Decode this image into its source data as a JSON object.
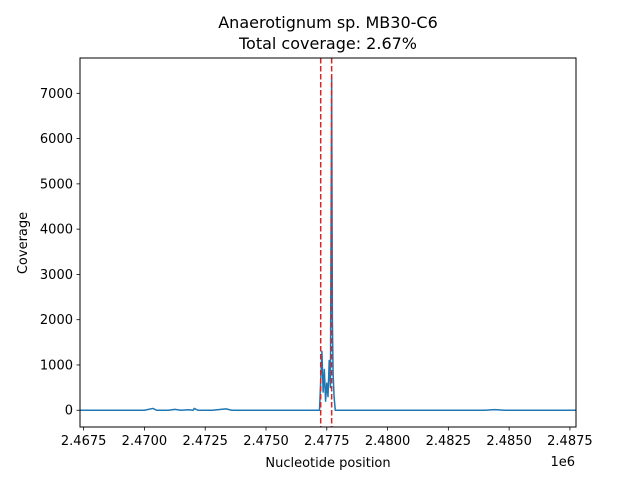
{
  "chart_data": {
    "type": "line",
    "title_line1": "Anaerotignum sp. MB30-C6",
    "title_line2": "Total coverage: 2.67%",
    "xlabel": "Nucleotide position",
    "ylabel": "Coverage",
    "x_offset_label": "1e6",
    "xlim": [
      2.46735,
      2.48775
    ],
    "ylim": [
      -370,
      7780
    ],
    "x_ticks": [
      {
        "value": 2.4675,
        "label": "2.4675"
      },
      {
        "value": 2.47,
        "label": "2.4700"
      },
      {
        "value": 2.4725,
        "label": "2.4725"
      },
      {
        "value": 2.475,
        "label": "2.4750"
      },
      {
        "value": 2.4775,
        "label": "2.4775"
      },
      {
        "value": 2.48,
        "label": "2.4800"
      },
      {
        "value": 2.4825,
        "label": "2.4825"
      },
      {
        "value": 2.485,
        "label": "2.4850"
      },
      {
        "value": 2.4875,
        "label": "2.4875"
      }
    ],
    "y_ticks": [
      {
        "value": 0,
        "label": "0"
      },
      {
        "value": 1000,
        "label": "1000"
      },
      {
        "value": 2000,
        "label": "2000"
      },
      {
        "value": 3000,
        "label": "3000"
      },
      {
        "value": 4000,
        "label": "4000"
      },
      {
        "value": 5000,
        "label": "5000"
      },
      {
        "value": 6000,
        "label": "6000"
      },
      {
        "value": 7000,
        "label": "7000"
      }
    ],
    "series": [
      {
        "color": "#1f77b4",
        "x": [
          2.46735,
          2.47,
          2.47035,
          2.4705,
          2.471,
          2.47125,
          2.4715,
          2.4718,
          2.472,
          2.47205,
          2.4722,
          2.4728,
          2.473,
          2.47335,
          2.4736,
          2.474,
          2.476,
          2.4772,
          2.4773,
          2.47735,
          2.4774,
          2.47745,
          2.4775,
          2.47755,
          2.4776,
          2.47765,
          2.4777,
          2.47773,
          2.47776,
          2.4778,
          2.47785,
          2.4779,
          2.4782,
          2.48,
          2.483,
          2.484,
          2.4844,
          2.4848,
          2.486,
          2.48775
        ],
        "y": [
          0,
          0,
          40,
          0,
          0,
          20,
          0,
          10,
          0,
          40,
          0,
          0,
          10,
          30,
          0,
          0,
          0,
          0,
          1300,
          400,
          900,
          200,
          600,
          300,
          1100,
          500,
          7350,
          2000,
          800,
          300,
          0,
          0,
          0,
          0,
          0,
          0,
          15,
          0,
          0,
          0
        ]
      }
    ],
    "vlines": [
      {
        "x": 2.47725,
        "color": "#d62728",
        "style": "dashed"
      },
      {
        "x": 2.4777,
        "color": "#d62728",
        "style": "dashed"
      }
    ],
    "grid": false
  }
}
